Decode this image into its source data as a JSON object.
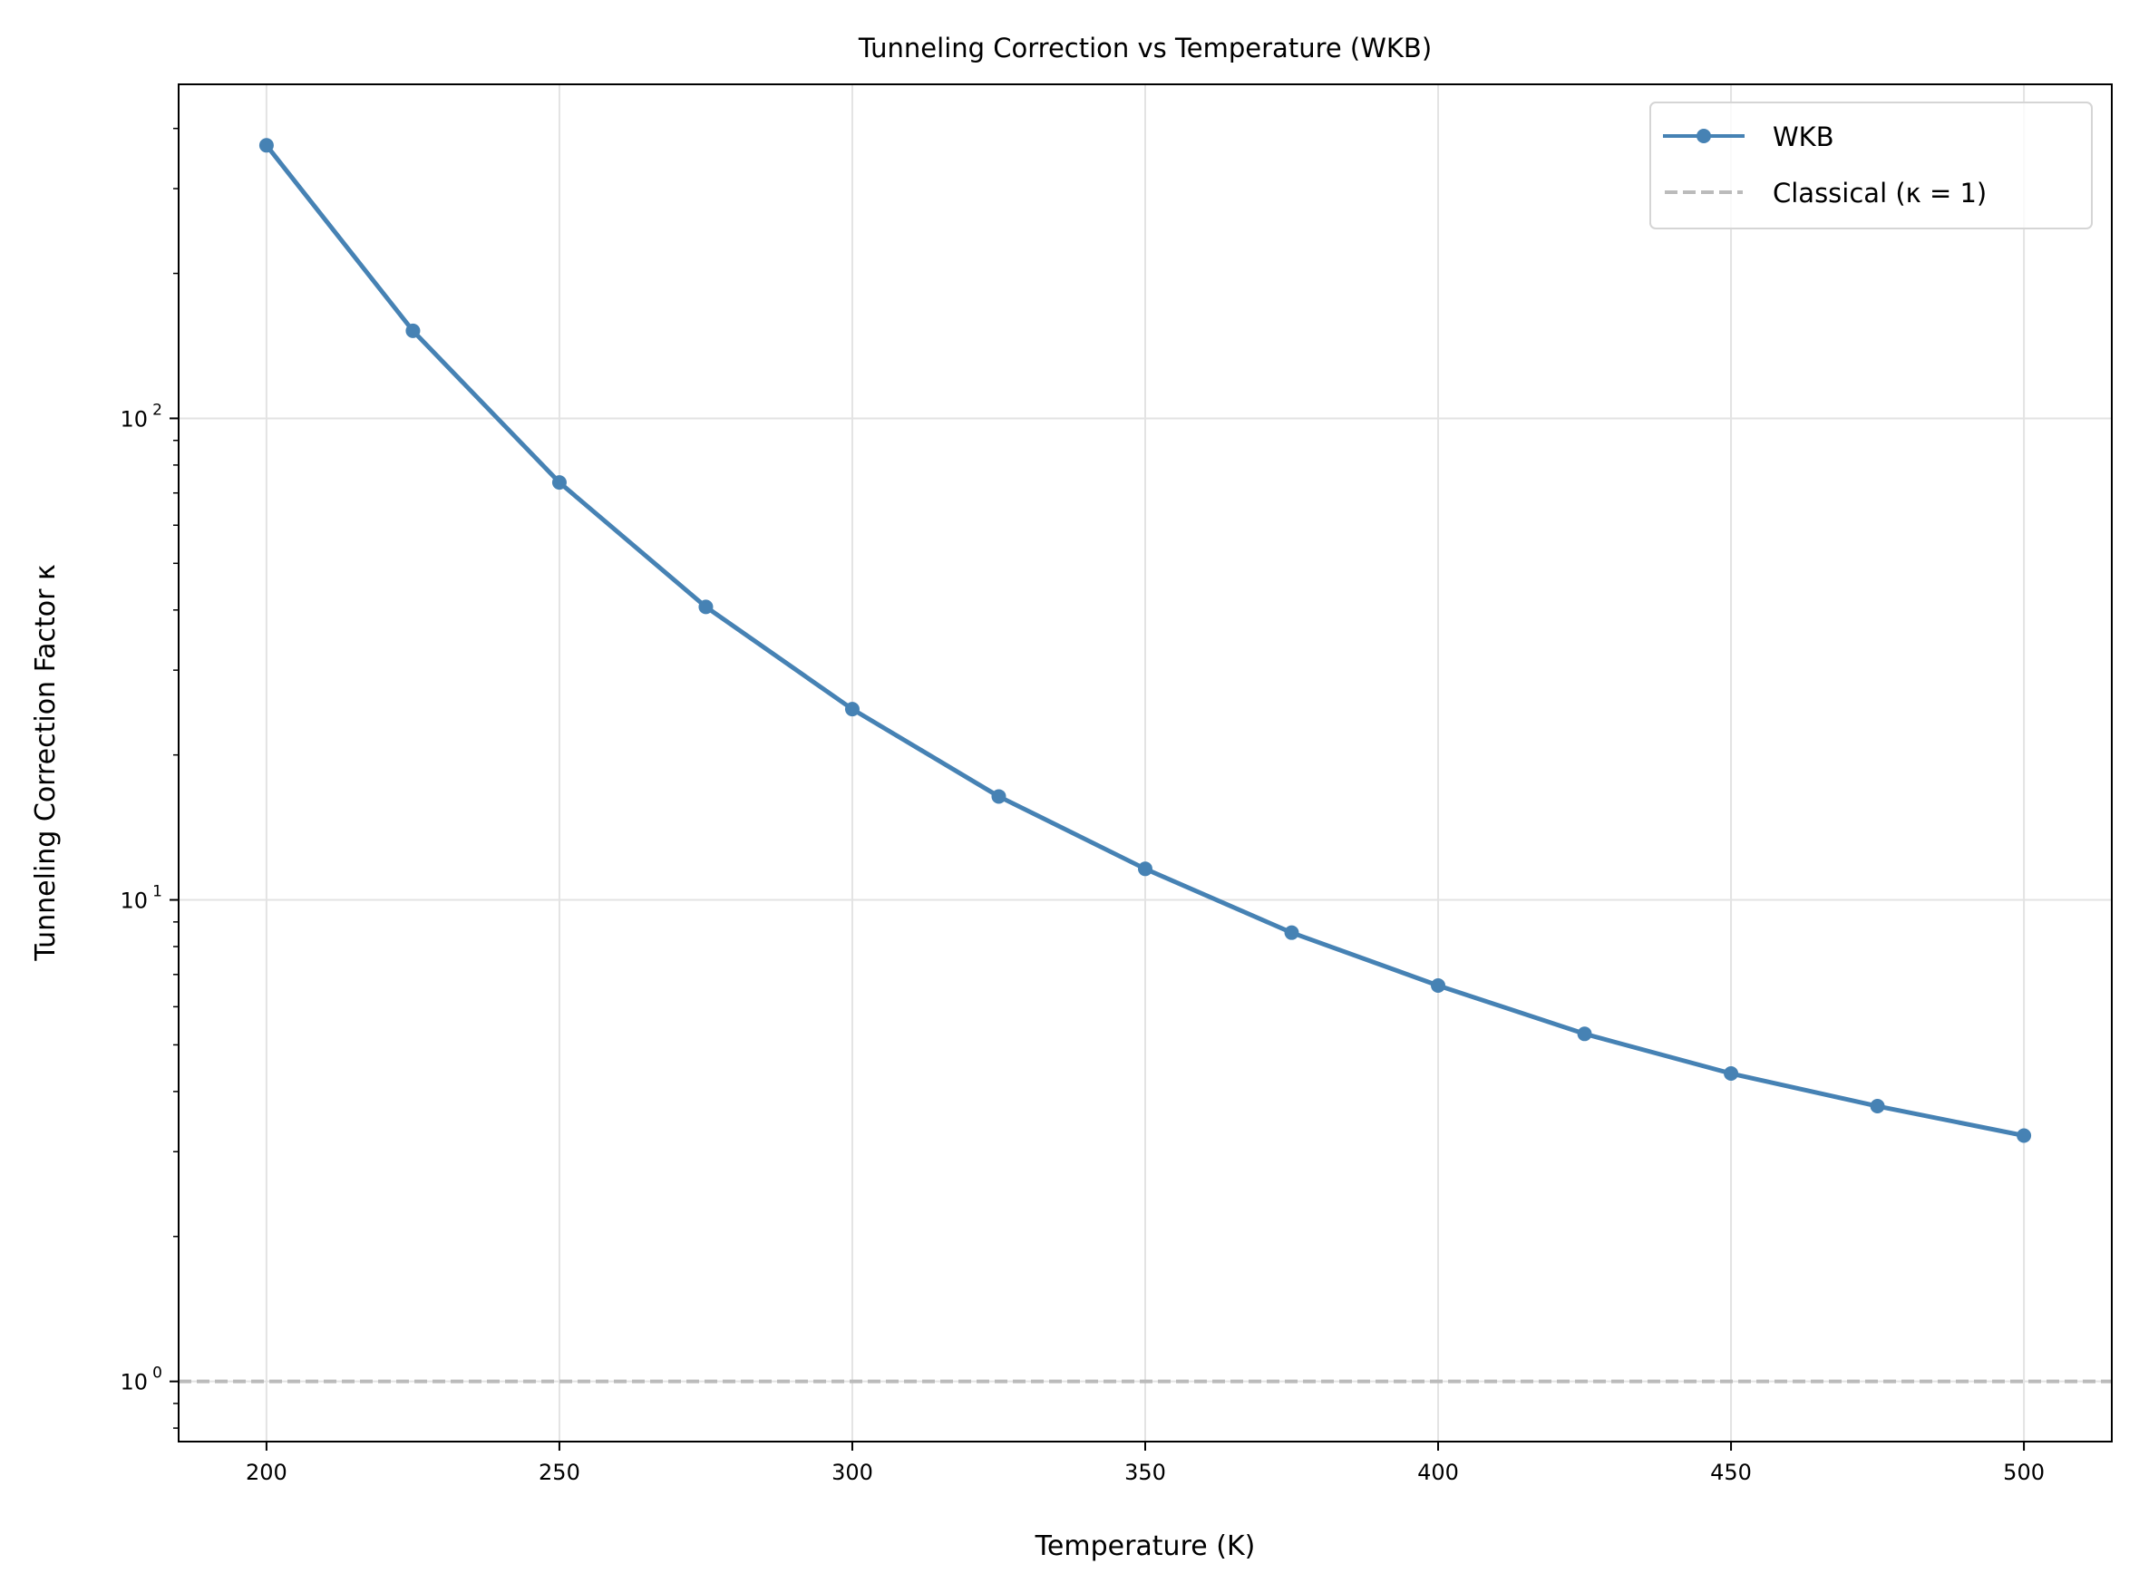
{
  "chart_data": {
    "type": "line",
    "title": "Tunneling Correction vs Temperature (WKB)",
    "xlabel": "Temperature (K)",
    "ylabel": "Tunneling Correction Factor κ",
    "xlim": [
      185,
      515
    ],
    "ylim": [
      0.75,
      494
    ],
    "yscale": "log",
    "grid": true,
    "legend_position": "top-right",
    "x_ticks": [
      "200",
      "250",
      "300",
      "350",
      "400",
      "450",
      "500"
    ],
    "y_ticks": [
      {
        "base": "10",
        "exp": "0",
        "value": 1
      },
      {
        "base": "10",
        "exp": "1",
        "value": 10
      },
      {
        "base": "10",
        "exp": "2",
        "value": 100
      }
    ],
    "series": [
      {
        "name": "WKB",
        "color": "#4682b4",
        "marker": "circle",
        "x": [
          200,
          225,
          250,
          275,
          300,
          325,
          350,
          375,
          400,
          425,
          450,
          475,
          500
        ],
        "y": [
          369,
          152,
          73.6,
          40.6,
          24.9,
          16.4,
          11.6,
          8.55,
          6.64,
          5.27,
          4.36,
          3.73,
          3.24
        ]
      },
      {
        "name": "Classical (κ = 1)",
        "color": "#bbbbbb",
        "style": "dashed",
        "y_constant": 1
      }
    ]
  }
}
